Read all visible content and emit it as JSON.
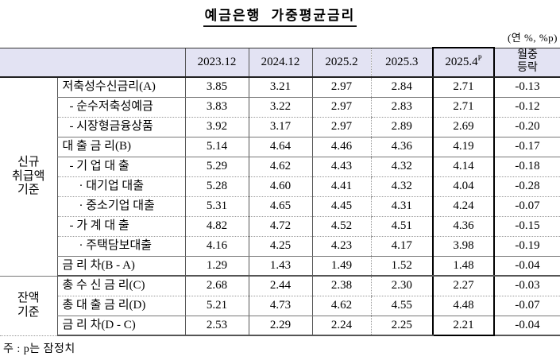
{
  "page": {
    "title": "예금은행 가중평균금리",
    "unit_note": "(연 %, %p)",
    "footnote": "주 : p는 잠정치"
  },
  "table": {
    "col_headers": [
      "2023.12",
      "2024.12",
      "2025.2",
      "2025.3"
    ],
    "highlight_col": {
      "label": "2025.4",
      "sup": "P"
    },
    "last_col": {
      "line1": "월중",
      "line2": "등락"
    },
    "groups": [
      {
        "label_lines": [
          "신규",
          "취급액",
          "기준"
        ]
      },
      {
        "label_lines": [
          "잔액",
          "기준"
        ]
      }
    ],
    "rows": [
      {
        "item": "저축성수신금리(A)",
        "values": [
          "3.85",
          "3.21",
          "2.97",
          "2.84",
          "2.71",
          "-0.13"
        ]
      },
      {
        "item": "- 순수저축성예금",
        "values": [
          "3.83",
          "3.22",
          "2.97",
          "2.83",
          "2.71",
          "-0.12"
        ]
      },
      {
        "item": "- 시장형금융상품",
        "values": [
          "3.92",
          "3.17",
          "2.97",
          "2.89",
          "2.69",
          "-0.20"
        ]
      },
      {
        "item": "대 출 금 리(B)",
        "values": [
          "5.14",
          "4.64",
          "4.46",
          "4.36",
          "4.19",
          "-0.17"
        ]
      },
      {
        "item": "- 기 업 대 출",
        "values": [
          "5.29",
          "4.62",
          "4.43",
          "4.32",
          "4.14",
          "-0.18"
        ]
      },
      {
        "item": "· 대기업 대출",
        "values": [
          "5.28",
          "4.60",
          "4.41",
          "4.32",
          "4.04",
          "-0.28"
        ]
      },
      {
        "item": "· 중소기업 대출",
        "values": [
          "5.31",
          "4.65",
          "4.45",
          "4.31",
          "4.24",
          "-0.07"
        ]
      },
      {
        "item": "- 가 계 대 출",
        "values": [
          "4.82",
          "4.72",
          "4.52",
          "4.51",
          "4.36",
          "-0.15"
        ]
      },
      {
        "item": "· 주택담보대출",
        "values": [
          "4.16",
          "4.25",
          "4.23",
          "4.17",
          "3.98",
          "-0.19"
        ]
      },
      {
        "item": "금 리 차(B - A)",
        "values": [
          "1.29",
          "1.43",
          "1.49",
          "1.52",
          "1.48",
          "-0.04"
        ]
      },
      {
        "item": "총 수 신 금 리(C)",
        "values": [
          "2.68",
          "2.44",
          "2.38",
          "2.30",
          "2.27",
          "-0.03"
        ]
      },
      {
        "item": "총 대 출 금 리(D)",
        "values": [
          "5.21",
          "4.73",
          "4.62",
          "4.55",
          "4.48",
          "-0.07"
        ]
      },
      {
        "item": "금 리 차(D - C)",
        "values": [
          "2.53",
          "2.29",
          "2.24",
          "2.25",
          "2.21",
          "-0.04"
        ]
      }
    ],
    "colors": {
      "header_bg": "#e3e3f3",
      "highlight_box_border": "#000000"
    }
  }
}
